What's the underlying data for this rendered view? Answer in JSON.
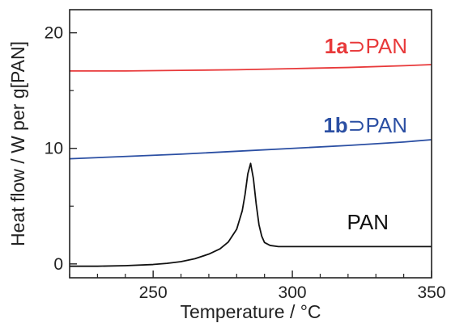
{
  "chart_data": {
    "type": "line",
    "xlabel": "Temperature / °C",
    "ylabel": "Heat flow / W per g[PAN]",
    "xlim": [
      220,
      350
    ],
    "ylim": [
      -1.2,
      22
    ],
    "x_ticks": [
      250,
      300,
      350
    ],
    "y_ticks": [
      0,
      10,
      20
    ],
    "grid": false,
    "legend": "none",
    "series": [
      {
        "label_prefix": "1a",
        "label_symbol": "⊃",
        "label_suffix": "PAN",
        "color": "#e8393a",
        "x": [
          220,
          240,
          260,
          280,
          300,
          320,
          340,
          350
        ],
        "y": [
          16.7,
          16.7,
          16.75,
          16.8,
          16.9,
          17.0,
          17.15,
          17.25
        ]
      },
      {
        "label_prefix": "1b",
        "label_symbol": "⊃",
        "label_suffix": "PAN",
        "color": "#2b4fa3",
        "x": [
          220,
          240,
          260,
          280,
          300,
          320,
          340,
          350
        ],
        "y": [
          9.1,
          9.3,
          9.5,
          9.75,
          10.0,
          10.25,
          10.55,
          10.75
        ]
      },
      {
        "label_prefix": "",
        "label_symbol": "",
        "label_suffix": "PAN",
        "color": "#111111",
        "x": [
          220,
          230,
          240,
          250,
          255,
          260,
          265,
          270,
          274,
          277,
          280,
          282,
          283,
          284,
          285,
          286,
          287,
          288,
          289,
          290,
          292,
          295,
          300,
          310,
          320,
          330,
          340,
          350
        ],
        "y": [
          -0.2,
          -0.2,
          -0.15,
          -0.05,
          0.05,
          0.2,
          0.45,
          0.85,
          1.3,
          1.9,
          3.0,
          4.6,
          6.0,
          7.8,
          8.7,
          7.4,
          5.2,
          3.4,
          2.4,
          1.85,
          1.6,
          1.5,
          1.5,
          1.5,
          1.5,
          1.5,
          1.5,
          1.5
        ]
      }
    ]
  }
}
